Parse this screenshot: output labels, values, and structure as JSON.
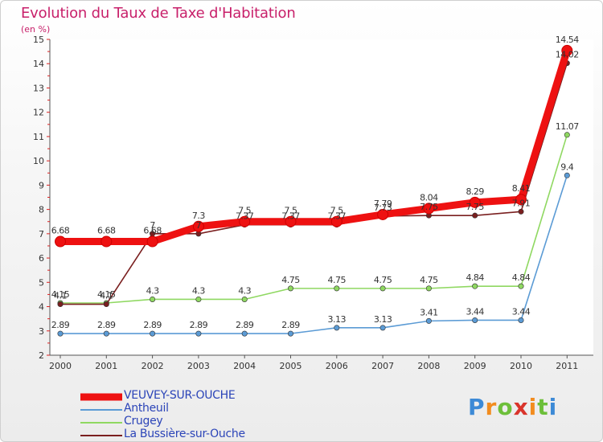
{
  "chart_data": {
    "type": "line",
    "title": "Evolution du Taux de Taxe d'Habitation",
    "subtitle": "(en %)",
    "x": [
      "2000",
      "2001",
      "2002",
      "2003",
      "2004",
      "2005",
      "2006",
      "2007",
      "2008",
      "2009",
      "2010",
      "2011"
    ],
    "ylim": [
      2,
      15
    ],
    "yticks": [
      "2",
      "3",
      "4",
      "5",
      "6",
      "7",
      "8",
      "9",
      "10",
      "11",
      "12",
      "13",
      "14",
      "15"
    ],
    "grid": false,
    "legend_position": "bottom-left",
    "series": [
      {
        "name": "VEUVEY-SUR-OUCHE",
        "color": "#ee1111",
        "values": [
          6.68,
          6.68,
          6.68,
          7.3,
          7.5,
          7.5,
          7.5,
          7.79,
          8.04,
          8.29,
          8.41,
          14.54
        ],
        "labels": [
          "6.68",
          "6.68",
          "6.68",
          "7.3",
          "7.5",
          "7.5",
          "7.5",
          "7.79",
          "8.04",
          "8.29",
          "8.41",
          "14.54"
        ]
      },
      {
        "name": "Antheuil",
        "color": "#5b9bd5",
        "values": [
          2.89,
          2.89,
          2.89,
          2.89,
          2.89,
          2.89,
          3.13,
          3.13,
          3.41,
          3.44,
          3.44,
          9.4
        ],
        "labels": [
          "2.89",
          "2.89",
          "2.89",
          "2.89",
          "2.89",
          "2.89",
          "3.13",
          "3.13",
          "3.41",
          "3.44",
          "3.44",
          "9.4"
        ]
      },
      {
        "name": "Crugey",
        "color": "#8fd861",
        "values": [
          4.15,
          4.15,
          4.3,
          4.3,
          4.3,
          4.75,
          4.75,
          4.75,
          4.75,
          4.84,
          4.84,
          11.07
        ],
        "labels": [
          "4.15",
          "4.15",
          "4.3",
          "4.3",
          "4.3",
          "4.75",
          "4.75",
          "4.75",
          "4.75",
          "4.84",
          "4.84",
          "11.07"
        ]
      },
      {
        "name": "La Bussière-sur-Ouche",
        "color": "#7a1f1f",
        "values": [
          4.1,
          4.1,
          7,
          7,
          7.37,
          7.37,
          7.37,
          7.73,
          7.75,
          7.75,
          7.91,
          14.02
        ],
        "labels": [
          "4.1",
          "4.1",
          "7",
          "7",
          "7.37",
          "7.37",
          "7.37",
          "7.73",
          "7.75",
          "7.75",
          "7.91",
          "14.02"
        ]
      }
    ]
  },
  "logo": {
    "letters": [
      "P",
      "r",
      "o",
      "x",
      "i",
      "t",
      "i"
    ]
  }
}
